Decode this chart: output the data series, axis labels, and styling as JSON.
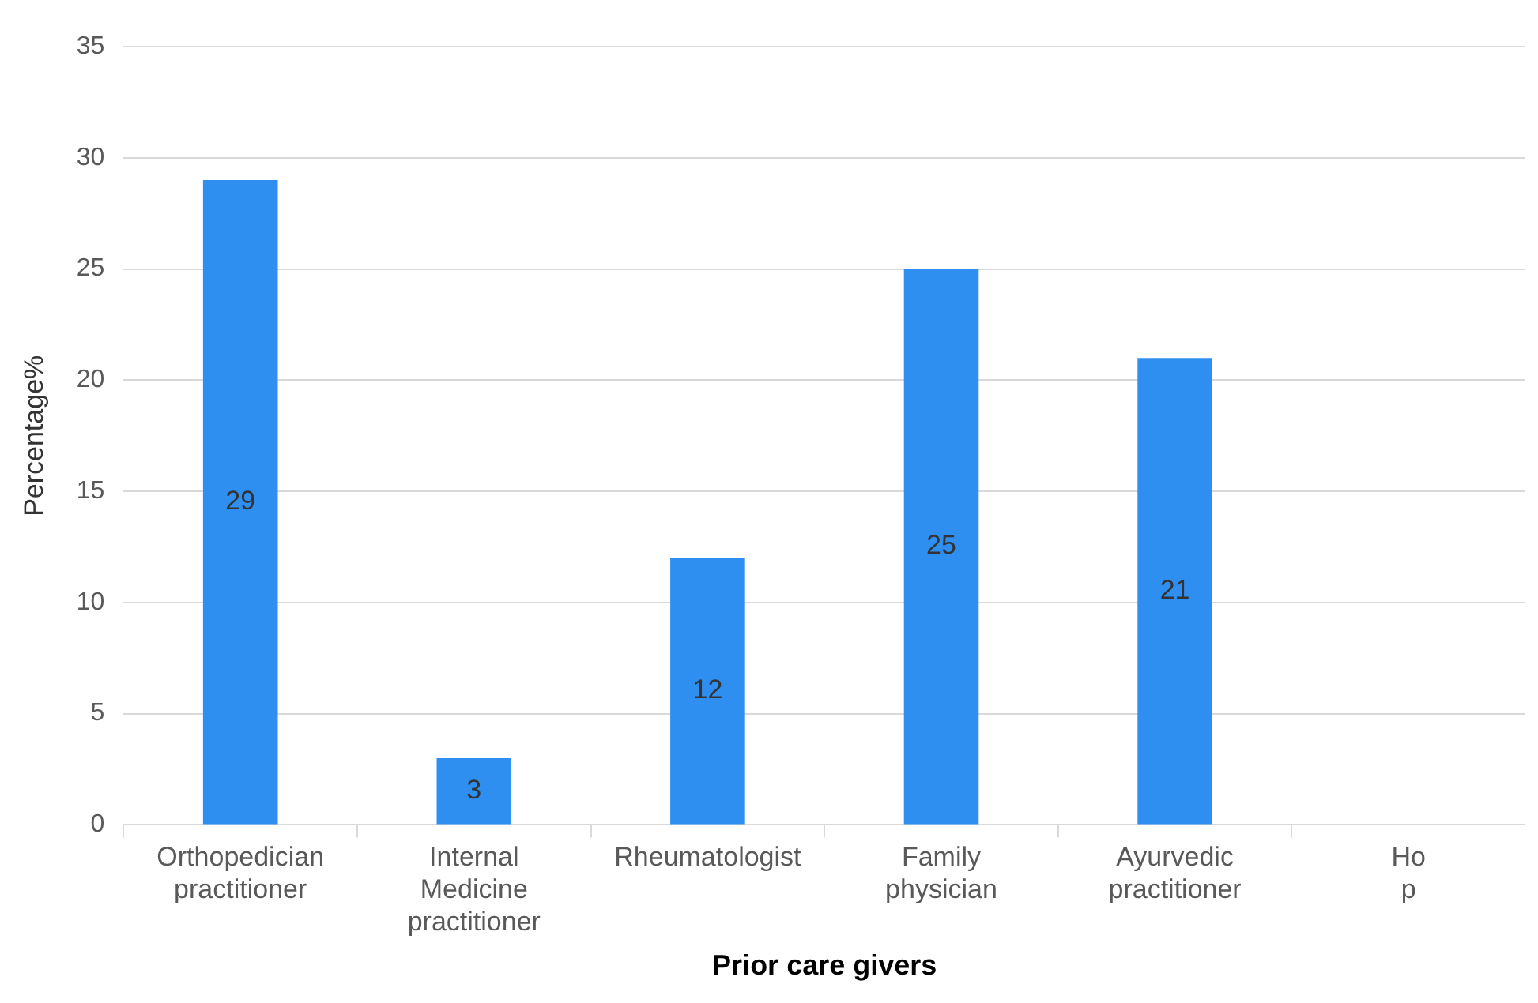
{
  "chart_data": {
    "type": "bar",
    "xlabel": "Prior care givers",
    "ylabel": "Percentage%",
    "categories": [
      "Orthopedician practitioner",
      "Internal Medicine practitioner",
      "Rheumatologist",
      "Family physician",
      "Ayurvedic practitioner",
      "Ho p"
    ],
    "values": [
      29,
      3,
      12,
      25,
      21,
      null
    ],
    "color": "#2f8ff0",
    "ylim": [
      0,
      35
    ],
    "yticks": [
      0,
      5,
      10,
      15,
      20,
      25,
      30,
      35
    ],
    "grid": "y",
    "data_labels": true,
    "legend": false
  }
}
